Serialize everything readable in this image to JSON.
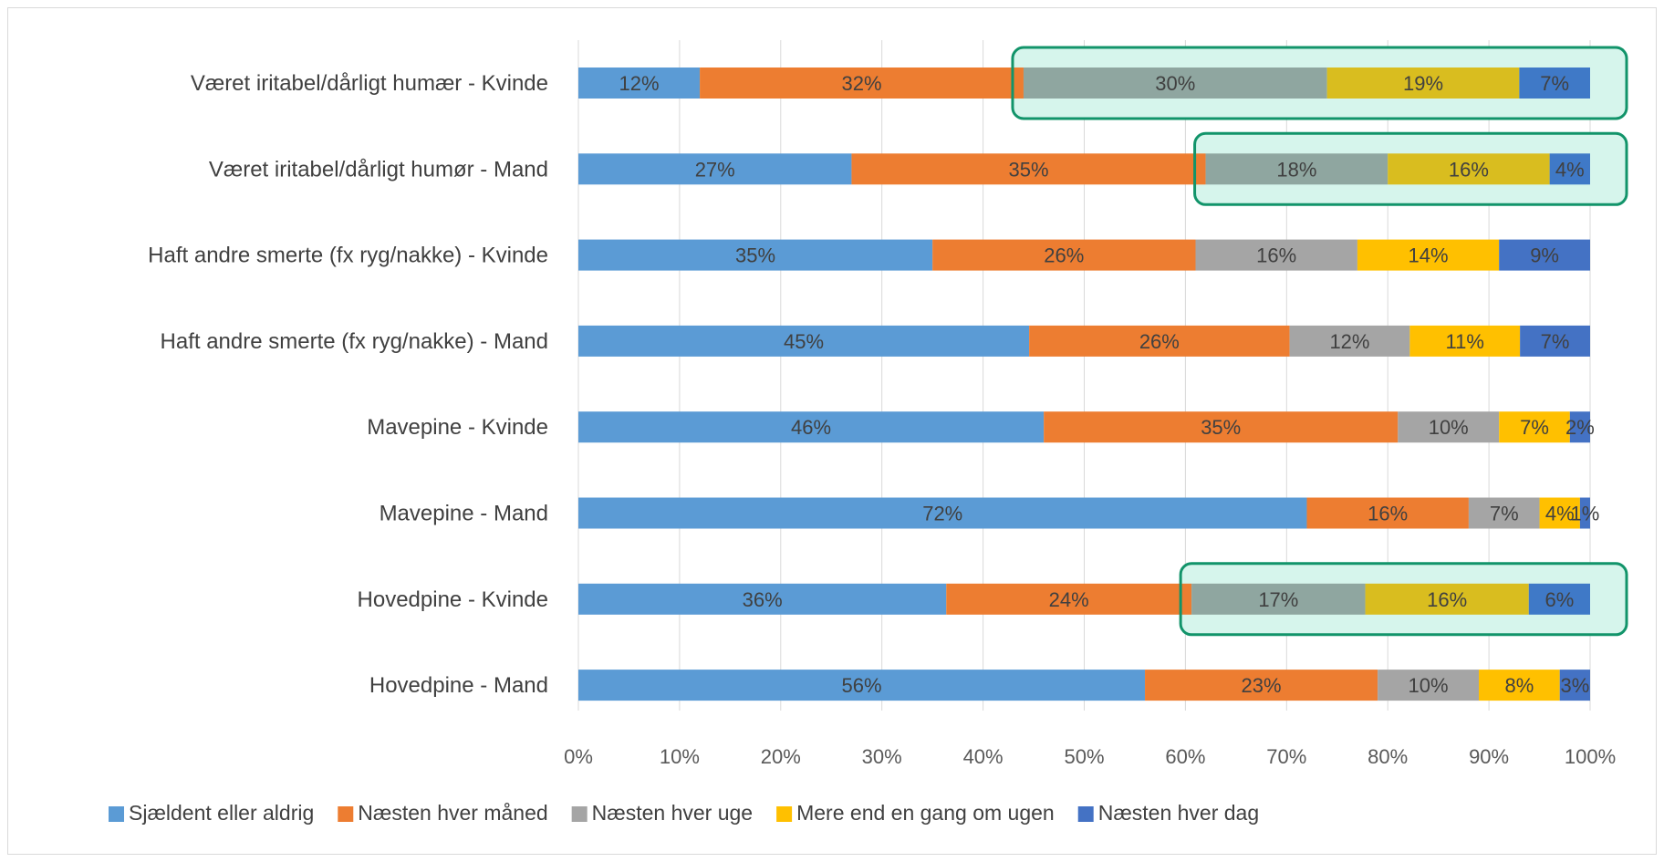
{
  "chart_data": {
    "type": "bar",
    "orientation": "horizontal",
    "stacked": true,
    "percent_scale": true,
    "categories": [
      "Været iritabel/dårligt humær - Kvinde",
      "Været iritabel/dårligt humør - Mand",
      "Haft andre smerte (fx ryg/nakke) - Kvinde",
      "Haft andre smerte (fx ryg/nakke) - Mand",
      "Mavepine - Kvinde",
      "Mavepine - Mand",
      "Hovedpine - Kvinde",
      "Hovedpine - Mand"
    ],
    "series": [
      {
        "name": "Sjældent eller aldrig",
        "color": "#5b9bd5",
        "values": [
          12,
          27,
          35,
          45,
          46,
          72,
          36,
          56
        ],
        "labels": [
          "12%",
          "27%",
          "35%",
          "45%",
          "46%",
          "72%",
          "36%",
          "56%"
        ]
      },
      {
        "name": "Næsten hver måned",
        "color": "#ed7d31",
        "values": [
          32,
          35,
          26,
          26,
          35,
          16,
          24,
          23
        ],
        "labels": [
          "32%",
          "35%",
          "26%",
          "26%",
          "35%",
          "16%",
          "24%",
          "23%"
        ]
      },
      {
        "name": "Næsten hver uge",
        "color": "#a5a5a5",
        "values": [
          30,
          18,
          16,
          12,
          10,
          7,
          17,
          10
        ],
        "labels": [
          "30%",
          "18%",
          "16%",
          "12%",
          "10%",
          "7%",
          "17%",
          "10%"
        ]
      },
      {
        "name": "Mere end en gang om ugen",
        "color": "#ffc000",
        "values": [
          19,
          16,
          14,
          11,
          7,
          4,
          16,
          8
        ],
        "labels": [
          "19%",
          "16%",
          "14%",
          "11%",
          "7%",
          "4%",
          "16%",
          "8%"
        ]
      },
      {
        "name": "Næsten hver dag",
        "color": "#4472c4",
        "values": [
          7,
          4,
          9,
          7,
          2,
          1,
          6,
          3
        ],
        "labels": [
          "7%",
          "4%",
          "9%",
          "7%",
          "2%",
          "1%",
          "6%",
          "3%"
        ]
      }
    ],
    "x_ticks": [
      "0%",
      "10%",
      "20%",
      "30%",
      "40%",
      "50%",
      "60%",
      "70%",
      "80%",
      "90%",
      "100%"
    ],
    "xlim": [
      0,
      100
    ],
    "grid": true,
    "legend_position": "bottom",
    "highlights": [
      {
        "category_index": 0,
        "from_series_index": 2
      },
      {
        "category_index": 1,
        "from_series_index": 2
      },
      {
        "category_index": 6,
        "from_series_index": 2
      }
    ],
    "highlight_border_color": "#12946a",
    "highlight_fill_color": "#d6f5ec"
  }
}
